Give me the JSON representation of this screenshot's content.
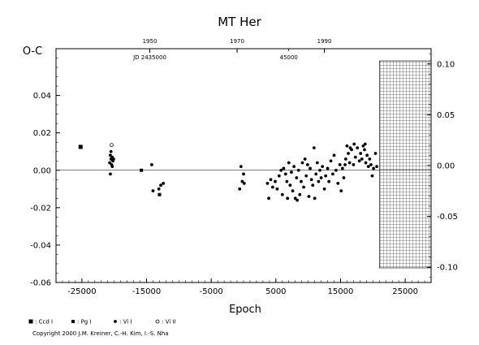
{
  "chart_data": {
    "type": "scatter",
    "title": "MT Her",
    "xlabel": "Epoch",
    "ylabel": "O-C",
    "xlim": [
      -29000,
      29000
    ],
    "ylim": [
      -0.06,
      0.065
    ],
    "x_ticks": [
      -25000,
      -15000,
      -5000,
      5000,
      15000,
      25000
    ],
    "x_tick_labels": [
      "-25000",
      "-15000",
      "-5000",
      "5000",
      "15000",
      "25000"
    ],
    "y_ticks": [
      -0.06,
      -0.04,
      -0.02,
      0.0,
      0.02,
      0.04
    ],
    "y_tick_labels": [
      "-0.06",
      "-0.04",
      "-0.02",
      "0.00",
      "0.02",
      "0.04"
    ],
    "right_y_ticks": [
      -0.1,
      -0.05,
      0.0,
      0.05,
      0.1
    ],
    "right_y_tick_labels": [
      "-0.10",
      "-0.05",
      "0.00",
      "0.05",
      "0.10"
    ],
    "right_ylim": [
      -0.115,
      0.115
    ],
    "top_year_ticks": [
      {
        "label": "1950",
        "epoch": -14500
      },
      {
        "label": "1970",
        "epoch": -1000
      },
      {
        "label": "1990",
        "epoch": 12500
      }
    ],
    "top_jd_ticks": [
      {
        "label": "JD 2435000",
        "epoch": -14500
      },
      {
        "label": "45000",
        "epoch": 7000
      }
    ],
    "hatched_region": [
      21000,
      29000
    ],
    "zero_line": true,
    "legend": [
      {
        "marker": "filled-square-large",
        "label": ": Ccd I"
      },
      {
        "marker": "filled-square-small",
        "label": ": Pg I"
      },
      {
        "marker": "filled-circle",
        "label": ": Vi I"
      },
      {
        "marker": "open-circle",
        "label": ": Vi II"
      }
    ],
    "series": [
      {
        "marker": "filled-square-large",
        "points": [
          [
            -25200,
            0.0125
          ]
        ]
      },
      {
        "marker": "filled-square-small",
        "points": [
          [
            -15800,
            0.0
          ],
          [
            -13000,
            -0.013
          ]
        ]
      },
      {
        "marker": "open-circle",
        "points": [
          [
            -20400,
            0.0135
          ]
        ]
      },
      {
        "marker": "filled-circle",
        "points": [
          [
            -20700,
            0.004
          ],
          [
            -20500,
            0.006
          ],
          [
            -20300,
            0.007
          ],
          [
            -20200,
            0.005
          ],
          [
            -20600,
            0.008
          ],
          [
            -20400,
            0.003
          ],
          [
            -20100,
            0.006
          ],
          [
            -20500,
            0.01
          ],
          [
            -20600,
            -0.002
          ],
          [
            -20300,
            0.002
          ],
          [
            -14200,
            0.003
          ],
          [
            -14000,
            -0.011
          ],
          [
            -13100,
            -0.01
          ],
          [
            -12800,
            -0.008
          ],
          [
            -12400,
            -0.007
          ],
          [
            -400,
            0.002
          ],
          [
            -600,
            -0.01
          ],
          [
            -200,
            -0.006
          ],
          [
            0,
            -0.002
          ],
          [
            100,
            -0.007
          ],
          [
            3700,
            -0.007
          ],
          [
            3900,
            -0.015
          ],
          [
            4200,
            -0.005
          ],
          [
            4500,
            -0.009
          ],
          [
            4900,
            -0.006
          ],
          [
            5200,
            -0.01
          ],
          [
            5500,
            -0.003
          ],
          [
            5800,
            0.0
          ],
          [
            6000,
            -0.013
          ],
          [
            6200,
            0.001
          ],
          [
            6500,
            -0.002
          ],
          [
            6700,
            -0.006
          ],
          [
            6800,
            -0.015
          ],
          [
            7000,
            0.004
          ],
          [
            7200,
            -0.008
          ],
          [
            7400,
            -0.001
          ],
          [
            7600,
            -0.011
          ],
          [
            7800,
            0.002
          ],
          [
            8000,
            -0.015
          ],
          [
            8200,
            -0.004
          ],
          [
            8300,
            -0.016
          ],
          [
            8500,
            0.0
          ],
          [
            8700,
            -0.013
          ],
          [
            8900,
            -0.006
          ],
          [
            9100,
            0.004
          ],
          [
            9300,
            -0.009
          ],
          [
            9500,
            0.006
          ],
          [
            9700,
            -0.003
          ],
          [
            9900,
            0.003
          ],
          [
            10100,
            -0.014
          ],
          [
            10300,
            0.001
          ],
          [
            10500,
            -0.005
          ],
          [
            10700,
            -0.008
          ],
          [
            10900,
            0.012
          ],
          [
            11000,
            -0.015
          ],
          [
            11200,
            -0.002
          ],
          [
            11400,
            0.004
          ],
          [
            11600,
            -0.006
          ],
          [
            11800,
            0.0
          ],
          [
            12000,
            -0.004
          ],
          [
            12200,
            0.002
          ],
          [
            12500,
            -0.01
          ],
          [
            12700,
            -0.003
          ],
          [
            13000,
            0.001
          ],
          [
            13200,
            -0.006
          ],
          [
            13500,
            0.005
          ],
          [
            13800,
            -0.002
          ],
          [
            14000,
            0.008
          ],
          [
            14300,
            0.0
          ],
          [
            14600,
            -0.007
          ],
          [
            14900,
            0.003
          ],
          [
            15100,
            -0.011
          ],
          [
            15300,
            0.001
          ],
          [
            15500,
            -0.004
          ],
          [
            15800,
            0.006
          ],
          [
            16000,
            0.013
          ],
          [
            16200,
            0.009
          ],
          [
            16400,
            0.004
          ],
          [
            16700,
            0.011
          ],
          [
            17000,
            0.003
          ],
          [
            17300,
            0.007
          ],
          [
            17600,
            0.012
          ],
          [
            17900,
            0.005
          ],
          [
            18100,
            0.009
          ],
          [
            18300,
            0.006
          ],
          [
            18500,
            0.013
          ],
          [
            18700,
            0.011
          ],
          [
            18900,
            0.004
          ],
          [
            19100,
            0.008
          ],
          [
            19300,
            0.002
          ],
          [
            19500,
            0.006
          ],
          [
            19700,
            0.003
          ],
          [
            19900,
            -0.003
          ],
          [
            20100,
            0.001
          ],
          [
            20400,
            0.009
          ],
          [
            20600,
            0.002
          ],
          [
            17100,
            0.014
          ],
          [
            18800,
            0.014
          ],
          [
            16500,
            0.012
          ],
          [
            15700,
            0.003
          ]
        ]
      }
    ]
  },
  "footer": {
    "copyright": "Copyright 2000 J.M. Kreiner, C.-H. Kim, I.-S. Nha"
  }
}
